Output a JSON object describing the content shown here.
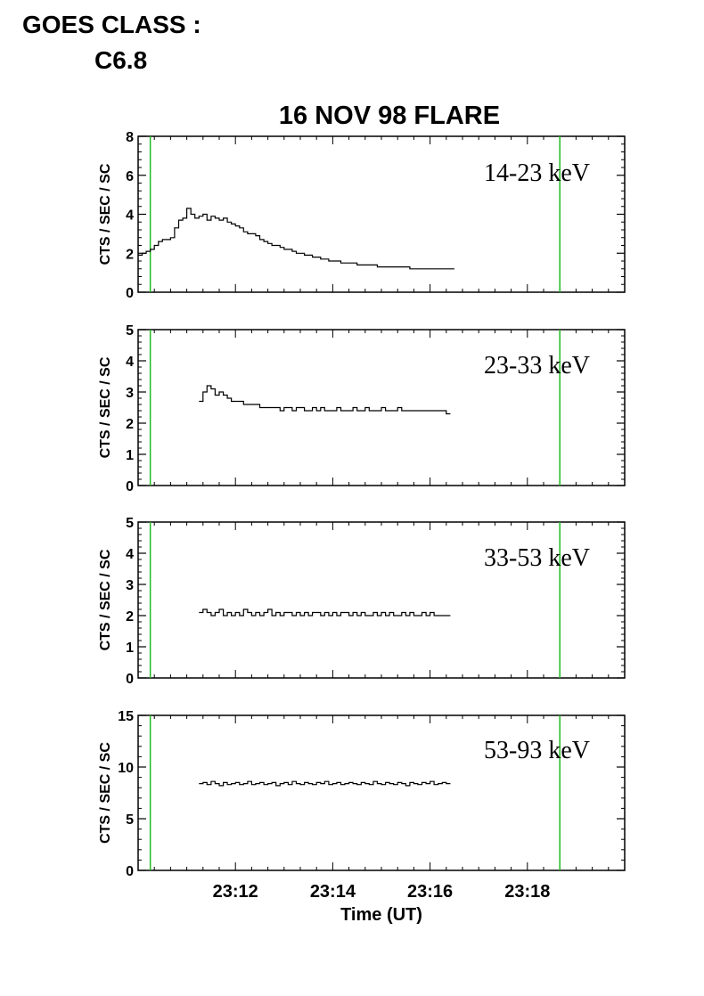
{
  "header": {
    "goes_label": "GOES CLASS :",
    "goes_value": "C6.8"
  },
  "chart_data": {
    "type": "line",
    "title": "16 NOV 98 FLARE",
    "xlabel": "Time (UT)",
    "xlim": [
      "23:10:00",
      "23:20:00"
    ],
    "x_ticks": [
      "23:12",
      "23:14",
      "23:16",
      "23:18"
    ],
    "markers": {
      "color": "#22bb22",
      "times": [
        "23:10:15",
        "23:18:40"
      ]
    },
    "line_color": "#000000",
    "panels": [
      {
        "band": "14-23 keV",
        "ylabel": "CTS / SEC / SC",
        "ylim": [
          0,
          8
        ],
        "y_ticks": [
          0,
          2,
          4,
          6,
          8
        ],
        "series": [
          {
            "start": "23:10:00",
            "step_seconds": 5,
            "values": [
              1.9,
              2.0,
              2.1,
              2.2,
              2.4,
              2.6,
              2.7,
              2.7,
              2.8,
              3.3,
              3.7,
              3.8,
              4.3,
              4.0,
              3.8,
              3.9,
              4.0,
              3.7,
              3.9,
              3.8,
              3.7,
              3.8,
              3.6,
              3.5,
              3.4,
              3.3,
              3.1,
              3.0,
              3.0,
              2.9,
              2.7,
              2.6,
              2.5,
              2.4,
              2.4,
              2.3,
              2.2,
              2.2,
              2.1,
              2.0,
              2.0,
              1.9,
              1.9,
              1.8,
              1.8,
              1.7,
              1.7,
              1.6,
              1.6,
              1.6,
              1.5,
              1.5,
              1.5,
              1.5,
              1.4,
              1.4,
              1.4,
              1.4,
              1.4,
              1.3,
              1.3,
              1.3,
              1.3,
              1.3,
              1.3,
              1.3,
              1.3,
              1.2,
              1.2,
              1.2,
              1.2,
              1.2,
              1.2,
              1.2,
              1.2,
              1.2,
              1.2,
              1.2
            ]
          }
        ]
      },
      {
        "band": "23-33 keV",
        "ylabel": "CTS / SEC / SC",
        "ylim": [
          0,
          5
        ],
        "y_ticks": [
          0,
          1,
          2,
          3,
          4,
          5
        ],
        "series": [
          {
            "start": "23:11:15",
            "step_seconds": 5,
            "values": [
              2.7,
              3.0,
              3.2,
              3.1,
              2.9,
              3.0,
              2.9,
              2.8,
              2.7,
              2.7,
              2.7,
              2.6,
              2.6,
              2.6,
              2.6,
              2.5,
              2.5,
              2.5,
              2.5,
              2.5,
              2.4,
              2.5,
              2.5,
              2.4,
              2.5,
              2.5,
              2.4,
              2.4,
              2.5,
              2.4,
              2.5,
              2.4,
              2.4,
              2.4,
              2.5,
              2.4,
              2.4,
              2.4,
              2.5,
              2.4,
              2.4,
              2.5,
              2.4,
              2.4,
              2.4,
              2.5,
              2.4,
              2.4,
              2.4,
              2.5,
              2.4,
              2.4,
              2.4,
              2.4,
              2.4,
              2.4,
              2.4,
              2.4,
              2.4,
              2.4,
              2.4,
              2.3
            ]
          }
        ]
      },
      {
        "band": "33-53 keV",
        "ylabel": "CTS / SEC / SC",
        "ylim": [
          0,
          5
        ],
        "y_ticks": [
          0,
          1,
          2,
          3,
          4,
          5
        ],
        "series": [
          {
            "start": "23:11:15",
            "step_seconds": 5,
            "values": [
              2.1,
              2.2,
              2.1,
              2.0,
              2.1,
              2.2,
              2.0,
              2.1,
              2.0,
              2.1,
              2.0,
              2.2,
              2.1,
              2.0,
              2.1,
              2.0,
              2.1,
              2.2,
              2.0,
              2.1,
              2.0,
              2.1,
              2.1,
              2.0,
              2.1,
              2.0,
              2.1,
              2.0,
              2.1,
              2.1,
              2.0,
              2.1,
              2.0,
              2.1,
              2.0,
              2.1,
              2.1,
              2.0,
              2.1,
              2.0,
              2.1,
              2.0,
              2.0,
              2.1,
              2.0,
              2.1,
              2.0,
              2.1,
              2.0,
              2.0,
              2.1,
              2.0,
              2.1,
              2.0,
              2.0,
              2.1,
              2.0,
              2.1,
              2.0,
              2.0,
              2.0,
              2.0
            ]
          }
        ]
      },
      {
        "band": "53-93 keV",
        "ylabel": "CTS / SEC / SC",
        "ylim": [
          0,
          15
        ],
        "y_ticks": [
          0,
          5,
          10,
          15
        ],
        "series": [
          {
            "start": "23:11:15",
            "step_seconds": 5,
            "values": [
              8.4,
              8.5,
              8.3,
              8.6,
              8.4,
              8.2,
              8.5,
              8.3,
              8.4,
              8.5,
              8.3,
              8.4,
              8.6,
              8.3,
              8.4,
              8.5,
              8.3,
              8.4,
              8.5,
              8.2,
              8.4,
              8.5,
              8.3,
              8.6,
              8.4,
              8.3,
              8.5,
              8.4,
              8.3,
              8.5,
              8.4,
              8.6,
              8.3,
              8.4,
              8.5,
              8.3,
              8.4,
              8.5,
              8.4,
              8.3,
              8.5,
              8.4,
              8.3,
              8.6,
              8.4,
              8.3,
              8.5,
              8.4,
              8.3,
              8.5,
              8.4,
              8.2,
              8.5,
              8.4,
              8.3,
              8.5,
              8.4,
              8.6,
              8.3,
              8.4,
              8.5,
              8.4
            ]
          }
        ]
      }
    ]
  }
}
